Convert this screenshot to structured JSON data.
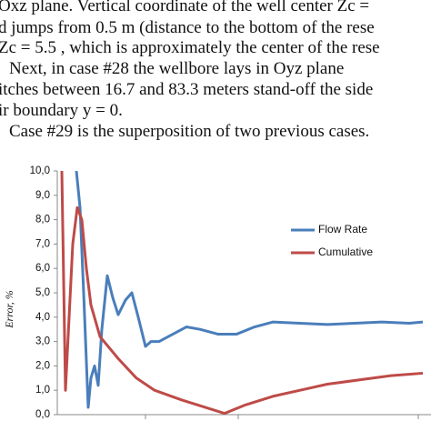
{
  "text_lines": [
    "Oxz plane. Vertical coordinate of the well center Zc =",
    "d jumps from 0.5 m (distance to the bottom of the rese",
    "Zc = 5.5 , which is approximately the center of the rese",
    "Next, in case #28 the wellbore lays in Oyz plane",
    "itches between 16.7 and 83.3 meters stand-off the side",
    "ir boundary y = 0.",
    "Case #29 is the superposition of two previous cases."
  ],
  "chart_data": {
    "type": "line",
    "y_label": "Error, %",
    "xlim": [
      0,
      402
    ],
    "ylim": [
      0,
      10
    ],
    "yticks": [
      {
        "value": 0,
        "label": "0,0"
      },
      {
        "value": 1,
        "label": "1,0"
      },
      {
        "value": 2,
        "label": "2,0"
      },
      {
        "value": 3,
        "label": "3,0"
      },
      {
        "value": 4,
        "label": "4,0"
      },
      {
        "value": 5,
        "label": "5,0"
      },
      {
        "value": 6,
        "label": "6,0"
      },
      {
        "value": 7,
        "label": "7,0"
      },
      {
        "value": 8,
        "label": "8,0"
      },
      {
        "value": 9,
        "label": "9,0"
      },
      {
        "value": 10,
        "label": "10,0"
      }
    ],
    "series": [
      {
        "name": "Flow Rate",
        "color": "#4a7ebb",
        "x": [
          21,
          25,
          29,
          34,
          37,
          41,
          45,
          49,
          55,
          61,
          67,
          75,
          82,
          89,
          97,
          103,
          112,
          127,
          142,
          157,
          177,
          197,
          217,
          237,
          267,
          297,
          327,
          357,
          387,
          402
        ],
        "values": [
          10,
          8.5,
          5,
          0.3,
          1.5,
          2.0,
          1.2,
          3.5,
          5.7,
          4.8,
          4.1,
          4.7,
          5.0,
          4.0,
          2.8,
          3.0,
          3.0,
          3.3,
          3.6,
          3.5,
          3.3,
          3.3,
          3.6,
          3.8,
          3.75,
          3.7,
          3.75,
          3.8,
          3.75,
          3.8
        ]
      },
      {
        "name": "Cumulative",
        "color": "#be4b48",
        "x": [
          5,
          9,
          13,
          17,
          22,
          27,
          32,
          37,
          47,
          67,
          87,
          107,
          137,
          167,
          184,
          207,
          237,
          267,
          297,
          337,
          367,
          402
        ],
        "values": [
          10,
          1.0,
          4,
          7,
          8.5,
          8.0,
          6,
          4.5,
          3.2,
          2.3,
          1.5,
          1.0,
          0.6,
          0.25,
          0.05,
          0.4,
          0.75,
          1.0,
          1.25,
          1.45,
          1.6,
          1.7
        ]
      }
    ]
  }
}
